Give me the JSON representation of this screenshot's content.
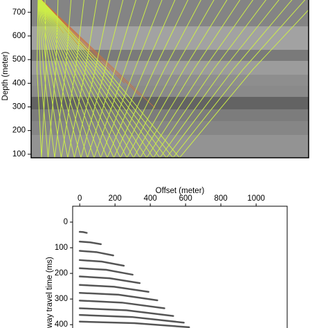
{
  "chart_data": [
    {
      "type": "rays",
      "ylabel": "Depth (meter)",
      "ylim": [
        85,
        752
      ],
      "yticks": [
        100,
        200,
        300,
        400,
        500,
        600,
        700
      ]
    },
    {
      "type": "curves",
      "xlabel": "Offset (meter)",
      "ylabel": "way travel time (ms)",
      "xlim": [
        -40,
        1176
      ],
      "xticks": [
        0,
        200,
        400,
        600,
        800,
        1000
      ],
      "ylim": [
        -62,
        413
      ],
      "yticks": [
        0,
        100,
        200,
        300,
        400
      ],
      "color": "#555555",
      "series": [
        {
          "x": [
            0,
            20,
            40
          ],
          "values": [
            38,
            39,
            42
          ]
        },
        {
          "x": [
            0,
            60,
            120
          ],
          "values": [
            76,
            79,
            86
          ]
        },
        {
          "x": [
            0,
            95,
            190
          ],
          "values": [
            112,
            117,
            130
          ]
        },
        {
          "x": [
            0,
            125,
            250
          ],
          "values": [
            148,
            154,
            170
          ]
        },
        {
          "x": [
            0,
            150,
            300
          ],
          "values": [
            180,
            186,
            205
          ]
        },
        {
          "x": [
            0,
            170,
            340
          ],
          "values": [
            212,
            219,
            238
          ]
        },
        {
          "x": [
            0,
            195,
            390
          ],
          "values": [
            245,
            252,
            272
          ]
        },
        {
          "x": [
            0,
            220,
            440
          ],
          "values": [
            276,
            283,
            305
          ]
        },
        {
          "x": [
            0,
            240,
            480
          ],
          "values": [
            306,
            314,
            336
          ]
        },
        {
          "x": [
            0,
            265,
            530
          ],
          "values": [
            336,
            344,
            366
          ]
        },
        {
          "x": [
            0,
            295,
            590
          ],
          "values": [
            362,
            370,
            392
          ]
        },
        {
          "x": [
            0,
            310,
            620
          ],
          "values": [
            388,
            394,
            410
          ]
        }
      ]
    }
  ]
}
